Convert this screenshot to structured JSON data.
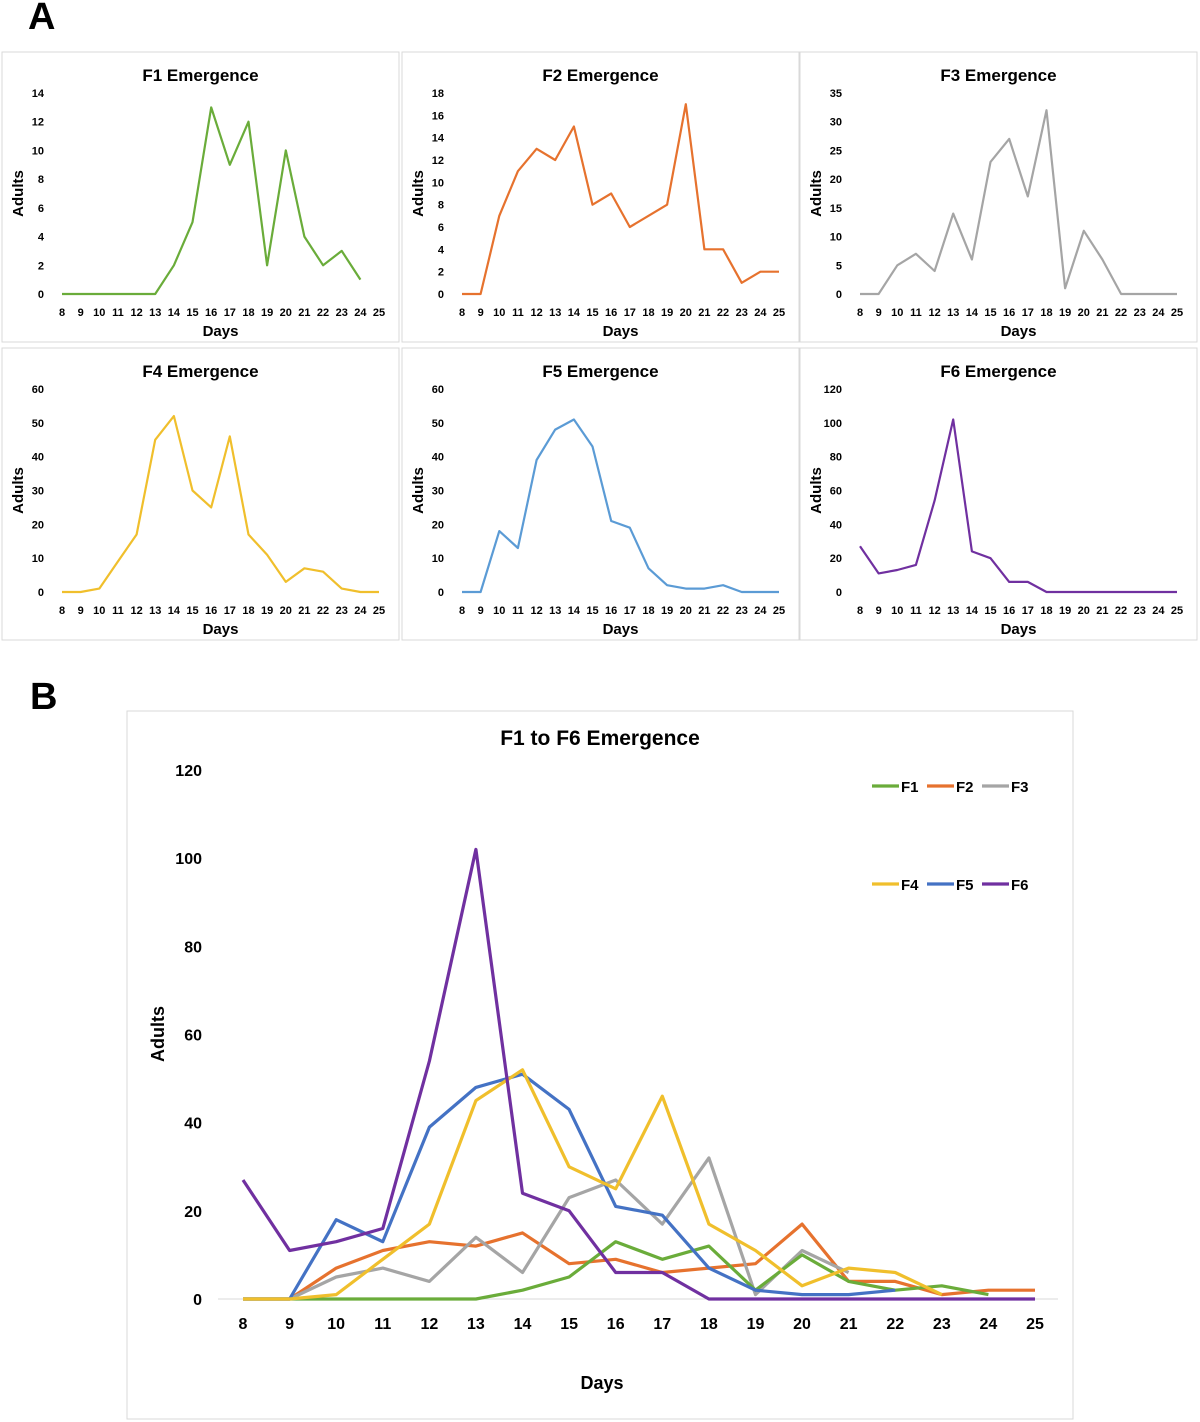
{
  "panel_labels": {
    "a": "A",
    "b": "B"
  },
  "chart_data": [
    {
      "type": "line",
      "id": "F1",
      "title": "F1 Emergence",
      "xlabel": "Days",
      "ylabel": "Adults",
      "color": "#6aac3a",
      "x": [
        8,
        9,
        10,
        11,
        12,
        13,
        14,
        15,
        16,
        17,
        18,
        19,
        20,
        21,
        22,
        23,
        24,
        25
      ],
      "ylim": [
        0,
        14
      ],
      "yticks": [
        0,
        2,
        4,
        6,
        8,
        10,
        12,
        14
      ],
      "values": [
        0,
        0,
        0,
        0,
        0,
        0,
        2,
        5,
        13,
        9,
        12,
        2,
        10,
        4,
        2,
        3,
        1,
        null
      ]
    },
    {
      "type": "line",
      "id": "F2",
      "title": "F2 Emergence",
      "xlabel": "Days",
      "ylabel": "Adults",
      "color": "#e6722e",
      "x": [
        8,
        9,
        10,
        11,
        12,
        13,
        14,
        15,
        16,
        17,
        18,
        19,
        20,
        21,
        22,
        23,
        24,
        25
      ],
      "ylim": [
        0,
        18
      ],
      "yticks": [
        0,
        2,
        4,
        6,
        8,
        10,
        12,
        14,
        16,
        18
      ],
      "values": [
        0,
        0,
        7,
        11,
        13,
        12,
        15,
        8,
        9,
        6,
        7,
        8,
        17,
        4,
        4,
        1,
        2,
        2
      ]
    },
    {
      "type": "line",
      "id": "F3",
      "title": "F3 Emergence",
      "xlabel": "Days",
      "ylabel": "Adults",
      "color": "#a5a5a5",
      "x": [
        8,
        9,
        10,
        11,
        12,
        13,
        14,
        15,
        16,
        17,
        18,
        19,
        20,
        21,
        22,
        23,
        24,
        25
      ],
      "ylim": [
        0,
        35
      ],
      "yticks": [
        0,
        5,
        10,
        15,
        20,
        25,
        30,
        35
      ],
      "values": [
        0,
        0,
        5,
        7,
        4,
        14,
        6,
        23,
        27,
        17,
        32,
        1,
        11,
        6,
        0,
        0,
        0,
        0
      ]
    },
    {
      "type": "line",
      "id": "F4",
      "title": "F4 Emergence",
      "xlabel": "Days",
      "ylabel": "Adults",
      "color": "#f0bf2c",
      "x": [
        8,
        9,
        10,
        11,
        12,
        13,
        14,
        15,
        16,
        17,
        18,
        19,
        20,
        21,
        22,
        23,
        24,
        25
      ],
      "ylim": [
        0,
        60
      ],
      "yticks": [
        0,
        10,
        20,
        30,
        40,
        50,
        60
      ],
      "values": [
        0,
        0,
        1,
        9,
        17,
        45,
        52,
        30,
        25,
        46,
        17,
        11,
        3,
        7,
        6,
        1,
        0,
        0
      ]
    },
    {
      "type": "line",
      "id": "F5",
      "title": "F5 Emergence",
      "xlabel": "Days",
      "ylabel": "Adults",
      "color": "#5b9bd5",
      "x": [
        8,
        9,
        10,
        11,
        12,
        13,
        14,
        15,
        16,
        17,
        18,
        19,
        20,
        21,
        22,
        23,
        24,
        25
      ],
      "ylim": [
        0,
        60
      ],
      "yticks": [
        0,
        10,
        20,
        30,
        40,
        50,
        60
      ],
      "values": [
        0,
        0,
        18,
        13,
        39,
        48,
        51,
        43,
        21,
        19,
        7,
        2,
        1,
        1,
        2,
        0,
        0,
        0
      ]
    },
    {
      "type": "line",
      "id": "F6",
      "title": "F6 Emergence",
      "xlabel": "Days",
      "ylabel": "Adults",
      "color": "#7030a0",
      "x": [
        8,
        9,
        10,
        11,
        12,
        13,
        14,
        15,
        16,
        17,
        18,
        19,
        20,
        21,
        22,
        23,
        24,
        25
      ],
      "ylim": [
        0,
        120
      ],
      "yticks": [
        0,
        20,
        40,
        60,
        80,
        100,
        120
      ],
      "values": [
        27,
        11,
        13,
        16,
        54,
        102,
        24,
        20,
        6,
        6,
        0,
        0,
        0,
        0,
        0,
        0,
        0,
        0
      ]
    },
    {
      "type": "line",
      "id": "combined",
      "title": "F1 to F6 Emergence",
      "xlabel": "Days",
      "ylabel": "Adults",
      "x": [
        8,
        9,
        10,
        11,
        12,
        13,
        14,
        15,
        16,
        17,
        18,
        19,
        20,
        21,
        22,
        23,
        24,
        25
      ],
      "ylim": [
        0,
        120
      ],
      "yticks": [
        0,
        20,
        40,
        60,
        80,
        100,
        120
      ],
      "legend": "top-right",
      "series": [
        {
          "name": "F1",
          "color": "#6aac3a",
          "values": [
            0,
            0,
            0,
            0,
            0,
            0,
            2,
            5,
            13,
            9,
            12,
            2,
            10,
            4,
            2,
            3,
            1,
            null
          ]
        },
        {
          "name": "F2",
          "color": "#e6722e",
          "values": [
            0,
            0,
            7,
            11,
            13,
            12,
            15,
            8,
            9,
            6,
            7,
            8,
            17,
            4,
            4,
            1,
            2,
            2
          ]
        },
        {
          "name": "F3",
          "color": "#a5a5a5",
          "values": [
            0,
            0,
            5,
            7,
            4,
            14,
            6,
            23,
            27,
            17,
            32,
            1,
            11,
            6,
            null,
            null,
            null,
            null
          ]
        },
        {
          "name": "F4",
          "color": "#f0bf2c",
          "values": [
            0,
            0,
            1,
            9,
            17,
            45,
            52,
            30,
            25,
            46,
            17,
            11,
            3,
            7,
            6,
            1,
            null,
            null
          ]
        },
        {
          "name": "F5",
          "color": "#4472c4",
          "values": [
            0,
            0,
            18,
            13,
            39,
            48,
            51,
            43,
            21,
            19,
            7,
            2,
            1,
            1,
            2,
            null,
            null,
            null
          ]
        },
        {
          "name": "F6",
          "color": "#7030a0",
          "values": [
            27,
            11,
            13,
            16,
            54,
            102,
            24,
            20,
            6,
            6,
            0,
            0,
            0,
            0,
            0,
            0,
            0,
            0
          ]
        }
      ]
    }
  ]
}
